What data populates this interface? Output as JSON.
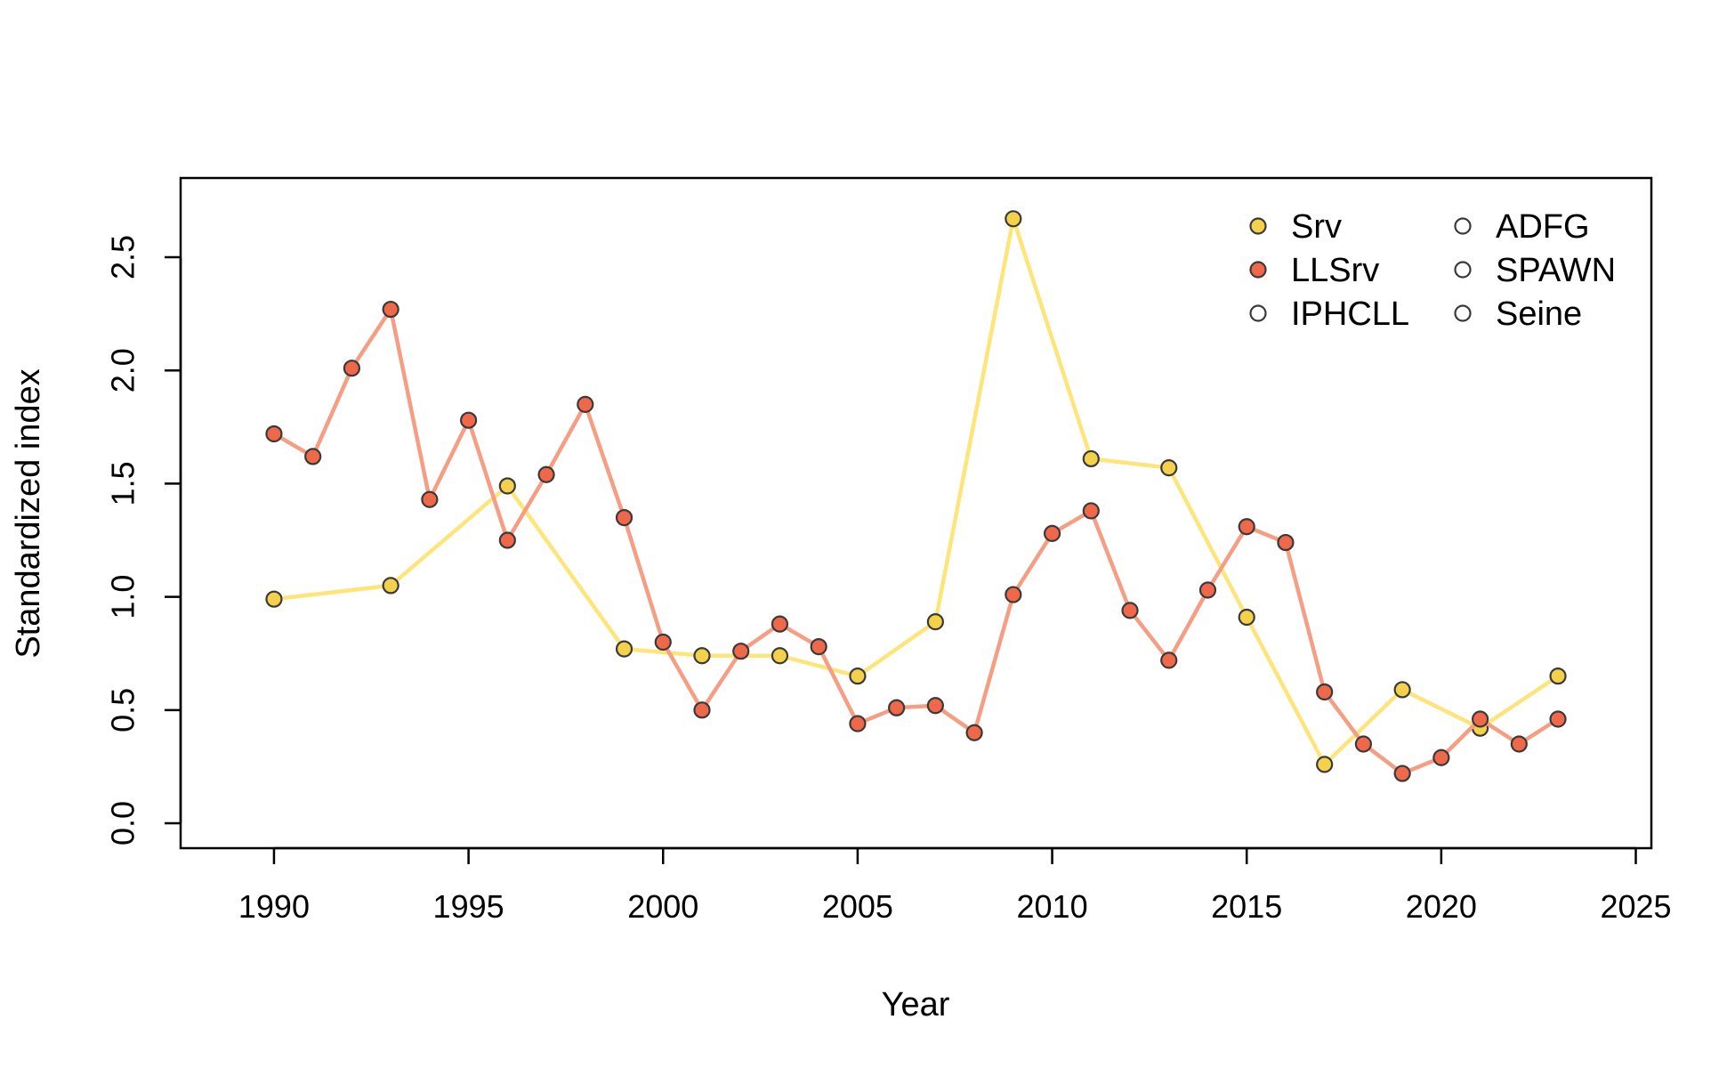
{
  "chart_data": {
    "type": "line",
    "title": "",
    "xlabel": "Year",
    "ylabel": "Standardized index",
    "xlim": [
      1987.6,
      1988.7
    ],
    "xticks": [
      1990,
      1995,
      2000,
      2005,
      2010,
      2015,
      2020,
      2025
    ],
    "ylim": [
      0,
      2.8
    ],
    "yticks": [
      "0.0",
      "0.5",
      "1.0",
      "1.5",
      "2.0",
      "2.5"
    ],
    "grid": false,
    "legend_position": "top-right",
    "series": [
      {
        "name": "Srv",
        "line_color": "#fde57a",
        "point_color": "#f4d14b",
        "points": [
          [
            1990,
            0.99
          ],
          [
            1993,
            1.05
          ],
          [
            1996,
            1.49
          ],
          [
            1999,
            0.77
          ],
          [
            2001,
            0.74
          ],
          [
            2003,
            0.74
          ],
          [
            2005,
            0.65
          ],
          [
            2007,
            0.89
          ],
          [
            2009,
            2.67
          ],
          [
            2011,
            1.61
          ],
          [
            2013,
            1.57
          ],
          [
            2015,
            0.91
          ],
          [
            2017,
            0.26
          ],
          [
            2019,
            0.59
          ],
          [
            2021,
            0.42
          ],
          [
            2023,
            0.65
          ]
        ]
      },
      {
        "name": "LLSrv",
        "line_color": "#f59e84",
        "point_color": "#f0684a",
        "points": [
          [
            1990,
            1.72
          ],
          [
            1991,
            1.62
          ],
          [
            1992,
            2.01
          ],
          [
            1993,
            2.27
          ],
          [
            1994,
            1.43
          ],
          [
            1995,
            1.78
          ],
          [
            1996,
            1.25
          ],
          [
            1997,
            1.54
          ],
          [
            1998,
            1.85
          ],
          [
            1999,
            1.35
          ],
          [
            2000,
            0.8
          ],
          [
            2001,
            0.5
          ],
          [
            2002,
            0.76
          ],
          [
            2003,
            0.88
          ],
          [
            2004,
            0.78
          ],
          [
            2005,
            0.44
          ],
          [
            2006,
            0.51
          ],
          [
            2007,
            0.52
          ],
          [
            2008,
            0.4
          ],
          [
            2009,
            1.01
          ],
          [
            2010,
            1.28
          ],
          [
            2011,
            1.38
          ],
          [
            2012,
            0.94
          ],
          [
            2013,
            0.72
          ],
          [
            2014,
            1.03
          ],
          [
            2015,
            1.31
          ],
          [
            2016,
            1.24
          ],
          [
            2017,
            0.58
          ],
          [
            2018,
            0.35
          ],
          [
            2019,
            0.22
          ],
          [
            2020,
            0.29
          ],
          [
            2021,
            0.46
          ],
          [
            2022,
            0.35
          ],
          [
            2023,
            0.46
          ]
        ]
      },
      {
        "name": "IPHCLL",
        "line_color": "none",
        "point_color": "none",
        "points": []
      },
      {
        "name": "ADFG",
        "line_color": "none",
        "point_color": "none",
        "points": []
      },
      {
        "name": "SPAWN",
        "line_color": "none",
        "point_color": "none",
        "points": []
      },
      {
        "name": "Seine",
        "line_color": "none",
        "point_color": "none",
        "points": []
      }
    ]
  }
}
